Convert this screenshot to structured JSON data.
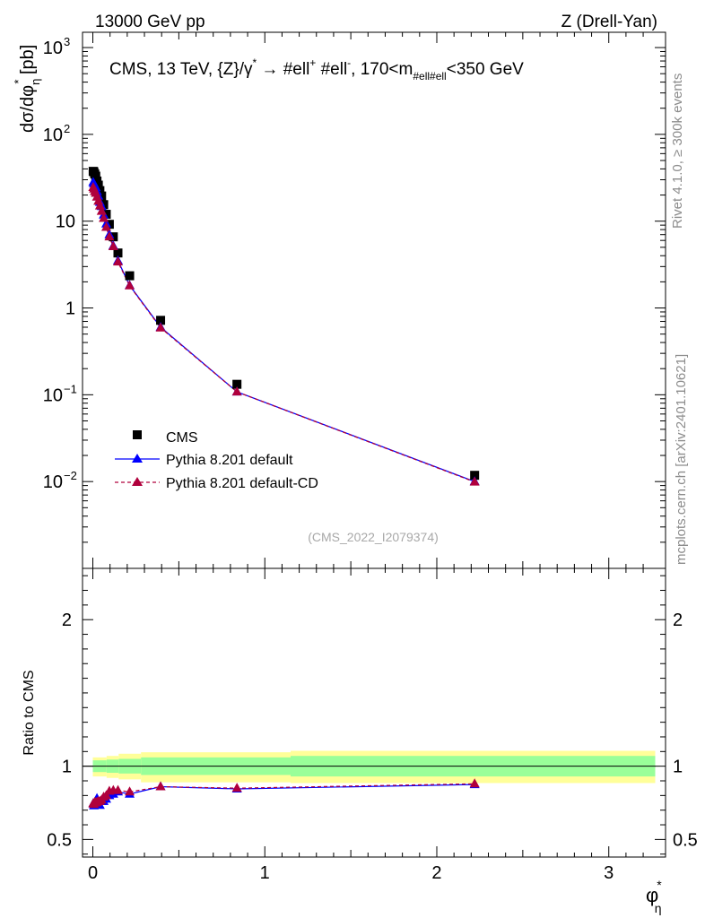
{
  "header": {
    "left": "13000 GeV pp",
    "right": "Z (Drell-Yan)"
  },
  "side_labels": {
    "rivet": "Rivet 4.1.0, ≥ 300k events",
    "mcplots": "mcplots.cern.ch [arXiv:2401.10621]"
  },
  "watermark": "(CMS_2022_I2079374)",
  "colors": {
    "pythia_default": "#0000ff",
    "pythia_cd": "#b0003c",
    "band_inner": "#99ff99",
    "band_outer": "#ffff99"
  },
  "chart_data": [
    {
      "type": "scatter",
      "title": "CMS, 13 TeV, {Z}/γ* → #ell+ #ell-, 170<m#ell#ell<350 GeV",
      "title_parts": {
        "main": "CMS, 13 TeV, {Z}/γ",
        "star": "*",
        "arrow": " →  #ell",
        "plus": "+",
        "mid": " #ell",
        "minus": "-",
        "range": ", 170<m",
        "sub": "#ell#ell",
        "tail": "<350 GeV"
      },
      "ylabel": "dσ/dφ*η [pb]",
      "ylabel_parts": {
        "main": "dσ/dφ",
        "sub": "η",
        "star": "*",
        "unit": " [pb]"
      },
      "yscale": "log",
      "ylim": [
        0.001,
        1500
      ],
      "xlim": [
        -0.06,
        3.33
      ],
      "yticks": [
        {
          "base": "10",
          "exp": "3",
          "value": 1000
        },
        {
          "base": "10",
          "exp": "2",
          "value": 100
        },
        {
          "base": "10",
          "exp": "",
          "value": 10
        },
        {
          "base": "1",
          "exp": "",
          "value": 1
        },
        {
          "base": "10",
          "exp": "−1",
          "value": 0.1
        },
        {
          "base": "10",
          "exp": "−2",
          "value": 0.01
        }
      ],
      "legend": {
        "position": "lower-left",
        "entries": [
          "CMS",
          "Pythia 8.201 default",
          "Pythia 8.201 default-CD"
        ]
      },
      "series": [
        {
          "name": "CMS",
          "marker": "square",
          "x": [
            0.002,
            0.006,
            0.011,
            0.017,
            0.024,
            0.032,
            0.041,
            0.051,
            0.063,
            0.078,
            0.096,
            0.119,
            0.146,
            0.214,
            0.394,
            0.838,
            2.22
          ],
          "y": [
            37.5,
            37.0,
            35.0,
            33.0,
            29.0,
            26.0,
            22.5,
            19.5,
            15.5,
            12.0,
            9.2,
            6.6,
            4.3,
            2.35,
            0.72,
            0.132,
            0.0118
          ]
        },
        {
          "name": "Pythia 8.201 default",
          "marker": "triangle",
          "x": [
            0.002,
            0.006,
            0.011,
            0.017,
            0.024,
            0.032,
            0.041,
            0.051,
            0.063,
            0.078,
            0.096,
            0.119,
            0.146,
            0.214,
            0.394,
            0.838,
            2.22
          ],
          "y": [
            28.0,
            27.0,
            25.5,
            24.5,
            22.0,
            19.5,
            16.5,
            14.8,
            11.8,
            9.3,
            7.0,
            5.2,
            3.5,
            1.82,
            0.6,
            0.108,
            0.01
          ]
        },
        {
          "name": "Pythia 8.201 default-CD",
          "marker": "triangle",
          "x": [
            0.002,
            0.006,
            0.011,
            0.017,
            0.024,
            0.032,
            0.041,
            0.051,
            0.063,
            0.078,
            0.096,
            0.119,
            0.146,
            0.214,
            0.394,
            0.838,
            2.22
          ],
          "y": [
            24.5,
            23.5,
            22.0,
            21.0,
            19.0,
            17.0,
            15.0,
            13.0,
            10.8,
            8.5,
            6.6,
            5.1,
            3.4,
            1.8,
            0.59,
            0.108,
            0.0099
          ]
        }
      ]
    },
    {
      "type": "scatter",
      "ylabel": "Ratio to CMS",
      "xlabel": "φ*η",
      "xlabel_parts": {
        "main": "φ",
        "star": "*",
        "sub": "η"
      },
      "ylim": [
        0.38,
        2.35
      ],
      "xlim": [
        -0.06,
        3.33
      ],
      "yticks": [
        "0.5",
        "1",
        "2"
      ],
      "ytick_values": [
        0.5,
        1,
        2
      ],
      "xticks": [
        "0",
        "1",
        "2",
        "3"
      ],
      "xtick_values": [
        0,
        1,
        2,
        3
      ],
      "reference_line": 1,
      "uncertainty_band": {
        "edges": [
          0.0,
          0.08,
          0.15,
          0.28,
          1.15,
          3.27
        ],
        "inner_low": [
          0.96,
          0.955,
          0.95,
          0.94,
          0.93
        ],
        "inner_high": [
          1.04,
          1.045,
          1.05,
          1.06,
          1.07
        ],
        "outer_low": [
          0.93,
          0.92,
          0.91,
          0.89,
          0.885
        ],
        "outer_high": [
          1.06,
          1.07,
          1.085,
          1.095,
          1.105
        ]
      },
      "series": [
        {
          "name": "Pythia 8.201 default",
          "x": [
            0.002,
            0.006,
            0.011,
            0.017,
            0.024,
            0.032,
            0.041,
            0.051,
            0.063,
            0.078,
            0.096,
            0.119,
            0.146,
            0.214,
            0.394,
            0.838,
            2.22
          ],
          "y": [
            0.745,
            0.73,
            0.735,
            0.74,
            0.78,
            0.75,
            0.733,
            0.76,
            0.76,
            0.775,
            0.8,
            0.81,
            0.825,
            0.81,
            0.86,
            0.845,
            0.875
          ]
        },
        {
          "name": "Pythia 8.201 default-CD",
          "x": [
            0.002,
            0.006,
            0.011,
            0.017,
            0.024,
            0.032,
            0.041,
            0.051,
            0.063,
            0.078,
            0.096,
            0.119,
            0.146,
            0.214,
            0.394,
            0.838,
            2.22
          ],
          "y": [
            0.745,
            0.74,
            0.755,
            0.75,
            0.755,
            0.76,
            0.76,
            0.77,
            0.79,
            0.8,
            0.83,
            0.835,
            0.835,
            0.825,
            0.86,
            0.85,
            0.88
          ]
        }
      ]
    }
  ]
}
